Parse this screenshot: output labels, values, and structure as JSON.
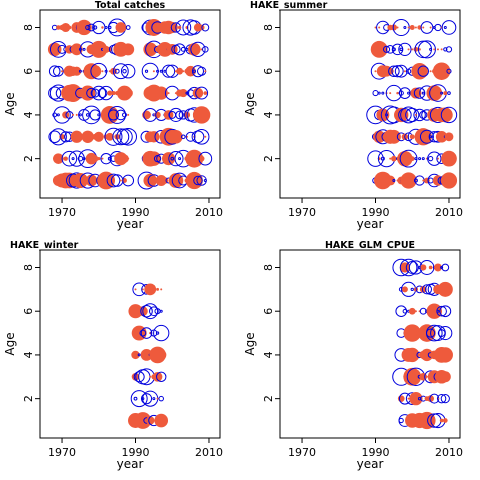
{
  "chart_data": [
    {
      "type": "scatter",
      "title": "Total catches",
      "xlabel": "year",
      "ylabel": "Age",
      "xlim": [
        1964,
        2013
      ],
      "ylim": [
        0.2,
        8.8
      ],
      "xticks": [
        1970,
        1990,
        2010
      ],
      "yticks": [
        2,
        4,
        6,
        8
      ],
      "encoding": "bubble size = |residual|; filled = positive, open = negative",
      "year_ranges": [
        [
          1968,
          1988
        ],
        [
          1993,
          2009
        ]
      ],
      "ages": [
        1,
        2,
        3,
        4,
        5,
        6,
        7,
        8
      ]
    },
    {
      "type": "scatter",
      "title": "HAKE_summer",
      "xlabel": "year",
      "ylabel": "Age",
      "xlim": [
        1964,
        2013
      ],
      "ylim": [
        0.2,
        8.8
      ],
      "xticks": [
        1970,
        1990,
        2010
      ],
      "yticks": [
        2,
        4,
        6,
        8
      ],
      "encoding": "bubble size = |residual|; filled = positive, open = negative",
      "year_ranges": [
        [
          1990,
          2010
        ]
      ],
      "ages": [
        1,
        2,
        3,
        4,
        5,
        6,
        7,
        8
      ]
    },
    {
      "type": "scatter",
      "title": "HAKE_winter",
      "xlabel": "year",
      "ylabel": "Age",
      "xlim": [
        1964,
        2013
      ],
      "ylim": [
        0.2,
        8.8
      ],
      "xticks": [
        1970,
        1990,
        2010
      ],
      "yticks": [
        2,
        4,
        6,
        8
      ],
      "encoding": "bubble size = |residual|; filled = positive, open = negative",
      "year_ranges": [
        [
          1990,
          1997
        ]
      ],
      "ages": [
        1,
        2,
        3,
        4,
        5,
        6,
        7
      ]
    },
    {
      "type": "scatter",
      "title": "HAKE_GLM_CPUE",
      "xlabel": "year",
      "ylabel": "Age",
      "xlim": [
        1964,
        2013
      ],
      "ylim": [
        0.2,
        8.8
      ],
      "xticks": [
        1970,
        1990,
        2010
      ],
      "yticks": [
        2,
        4,
        6,
        8
      ],
      "encoding": "bubble size = |residual|; filled = positive, open = negative",
      "year_ranges": [
        [
          1997,
          2009
        ]
      ],
      "ages": [
        1,
        2,
        3,
        4,
        5,
        6,
        7,
        8
      ]
    }
  ],
  "colors": {
    "positive": "#ee5a3c",
    "negative": "#0000dd"
  }
}
